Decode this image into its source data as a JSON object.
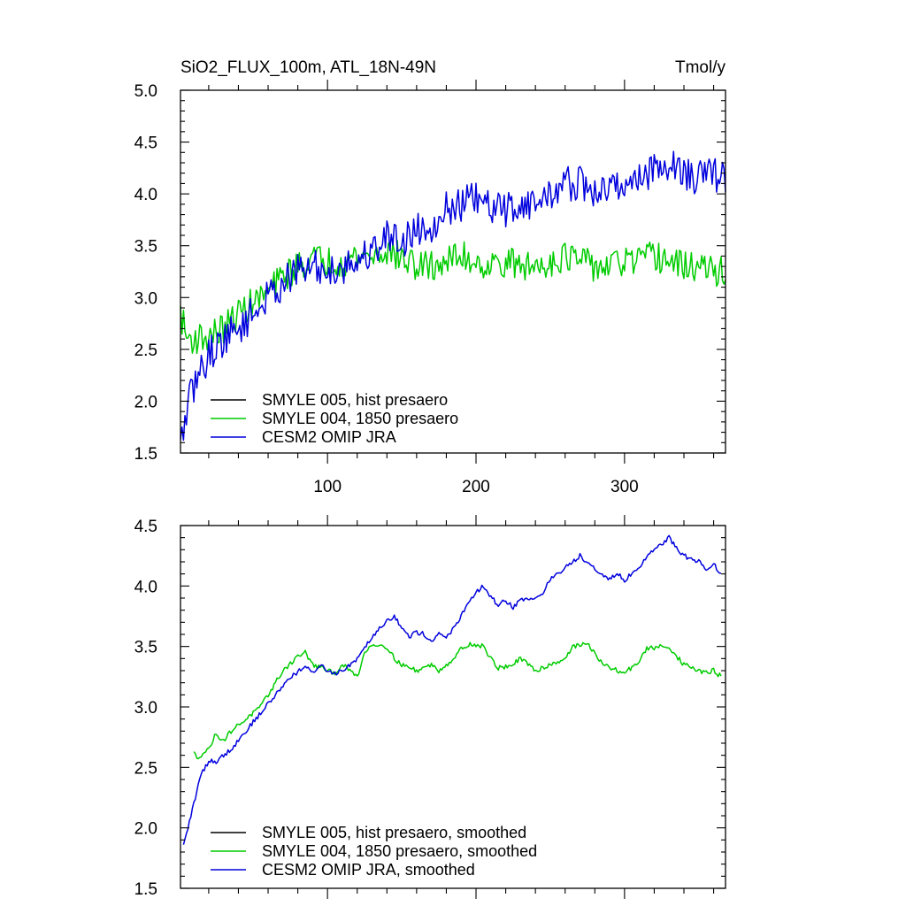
{
  "chart_data": [
    {
      "type": "line",
      "title": "SiO2_FLUX_100m, ATL_18N-49N",
      "units": "Tmol/y",
      "xlabel": "",
      "ylabel": "",
      "xlim": [
        1,
        368
      ],
      "ylim": [
        1.5,
        5.0
      ],
      "xticks": [
        100,
        200,
        300
      ],
      "xtick_labels": [
        "100",
        "200",
        "300"
      ],
      "yticks": [
        1.5,
        2.0,
        2.5,
        3.0,
        3.5,
        4.0,
        4.5,
        5.0
      ],
      "ytick_labels": [
        "1.5",
        "2.0",
        "2.5",
        "3.0",
        "3.5",
        "4.0",
        "4.5",
        "5.0"
      ],
      "legend_position": "bottom-left",
      "series": [
        {
          "name": "SMYLE 005, hist presaero",
          "color": "#000000",
          "values": []
        },
        {
          "name": "SMYLE 004, 1850 presaero",
          "color": "#00cc00",
          "noise": 0.15,
          "anchors": [
            [
              1,
              2.85
            ],
            [
              5,
              2.62
            ],
            [
              10,
              2.6
            ],
            [
              20,
              2.62
            ],
            [
              30,
              2.7
            ],
            [
              40,
              2.85
            ],
            [
              50,
              2.95
            ],
            [
              60,
              3.05
            ],
            [
              70,
              3.2
            ],
            [
              80,
              3.3
            ],
            [
              90,
              3.38
            ],
            [
              100,
              3.35
            ],
            [
              110,
              3.35
            ],
            [
              120,
              3.4
            ],
            [
              130,
              3.4
            ],
            [
              140,
              3.45
            ],
            [
              150,
              3.38
            ],
            [
              160,
              3.3
            ],
            [
              170,
              3.3
            ],
            [
              180,
              3.35
            ],
            [
              190,
              3.4
            ],
            [
              200,
              3.35
            ],
            [
              210,
              3.3
            ],
            [
              220,
              3.35
            ],
            [
              230,
              3.3
            ],
            [
              240,
              3.3
            ],
            [
              250,
              3.35
            ],
            [
              260,
              3.4
            ],
            [
              270,
              3.35
            ],
            [
              280,
              3.3
            ],
            [
              290,
              3.3
            ],
            [
              300,
              3.35
            ],
            [
              310,
              3.35
            ],
            [
              320,
              3.4
            ],
            [
              330,
              3.35
            ],
            [
              340,
              3.3
            ],
            [
              350,
              3.3
            ],
            [
              360,
              3.25
            ],
            [
              368,
              3.25
            ]
          ]
        },
        {
          "name": "CESM2 OMIP JRA",
          "color": "#0000dd",
          "noise": 0.17,
          "anchors": [
            [
              1,
              1.55
            ],
            [
              5,
              1.9
            ],
            [
              10,
              2.15
            ],
            [
              20,
              2.45
            ],
            [
              30,
              2.6
            ],
            [
              40,
              2.7
            ],
            [
              50,
              2.85
            ],
            [
              60,
              3.0
            ],
            [
              70,
              3.15
            ],
            [
              80,
              3.25
            ],
            [
              90,
              3.3
            ],
            [
              100,
              3.25
            ],
            [
              110,
              3.3
            ],
            [
              120,
              3.35
            ],
            [
              130,
              3.45
            ],
            [
              140,
              3.6
            ],
            [
              150,
              3.55
            ],
            [
              160,
              3.65
            ],
            [
              170,
              3.7
            ],
            [
              180,
              3.85
            ],
            [
              190,
              3.9
            ],
            [
              200,
              3.95
            ],
            [
              210,
              3.85
            ],
            [
              220,
              3.85
            ],
            [
              230,
              3.9
            ],
            [
              240,
              3.9
            ],
            [
              250,
              4.0
            ],
            [
              260,
              4.1
            ],
            [
              270,
              4.1
            ],
            [
              280,
              4.0
            ],
            [
              290,
              4.05
            ],
            [
              300,
              4.1
            ],
            [
              310,
              4.15
            ],
            [
              320,
              4.25
            ],
            [
              330,
              4.3
            ],
            [
              340,
              4.2
            ],
            [
              350,
              4.15
            ],
            [
              360,
              4.2
            ],
            [
              368,
              4.15
            ]
          ]
        }
      ]
    },
    {
      "type": "line",
      "title": "",
      "xlabel": "",
      "ylabel": "",
      "xlim": [
        1,
        368
      ],
      "ylim": [
        1.5,
        4.5
      ],
      "xticks": [
        100,
        200,
        300
      ],
      "xtick_labels": [],
      "yticks": [
        1.5,
        2.0,
        2.5,
        3.0,
        3.5,
        4.0,
        4.5
      ],
      "ytick_labels": [
        "1.5",
        "2.0",
        "2.5",
        "3.0",
        "3.5",
        "4.0",
        "4.5"
      ],
      "legend_position": "bottom-left",
      "series": [
        {
          "name": "SMYLE 005, hist presaero, smoothed",
          "color": "#000000",
          "values": []
        },
        {
          "name": "SMYLE 004, 1850 presaero, smoothed",
          "color": "#00cc00",
          "noise": 0.02,
          "anchors": [
            [
              10,
              2.62
            ],
            [
              12,
              2.58
            ],
            [
              20,
              2.65
            ],
            [
              25,
              2.78
            ],
            [
              30,
              2.72
            ],
            [
              35,
              2.8
            ],
            [
              40,
              2.85
            ],
            [
              50,
              2.95
            ],
            [
              55,
              3.0
            ],
            [
              60,
              3.1
            ],
            [
              65,
              3.2
            ],
            [
              70,
              3.3
            ],
            [
              80,
              3.42
            ],
            [
              85,
              3.45
            ],
            [
              90,
              3.35
            ],
            [
              100,
              3.3
            ],
            [
              105,
              3.28
            ],
            [
              110,
              3.35
            ],
            [
              115,
              3.3
            ],
            [
              120,
              3.25
            ],
            [
              125,
              3.45
            ],
            [
              130,
              3.52
            ],
            [
              140,
              3.5
            ],
            [
              145,
              3.4
            ],
            [
              150,
              3.35
            ],
            [
              160,
              3.3
            ],
            [
              170,
              3.35
            ],
            [
              175,
              3.3
            ],
            [
              185,
              3.4
            ],
            [
              190,
              3.48
            ],
            [
              195,
              3.52
            ],
            [
              205,
              3.5
            ],
            [
              210,
              3.4
            ],
            [
              215,
              3.32
            ],
            [
              225,
              3.35
            ],
            [
              230,
              3.4
            ],
            [
              240,
              3.3
            ],
            [
              250,
              3.35
            ],
            [
              260,
              3.4
            ],
            [
              265,
              3.5
            ],
            [
              275,
              3.52
            ],
            [
              280,
              3.45
            ],
            [
              285,
              3.35
            ],
            [
              295,
              3.3
            ],
            [
              300,
              3.28
            ],
            [
              310,
              3.38
            ],
            [
              315,
              3.48
            ],
            [
              325,
              3.5
            ],
            [
              330,
              3.5
            ],
            [
              335,
              3.42
            ],
            [
              340,
              3.35
            ],
            [
              350,
              3.3
            ],
            [
              355,
              3.28
            ],
            [
              360,
              3.3
            ],
            [
              365,
              3.25
            ]
          ]
        },
        {
          "name": "CESM2 OMIP JRA, smoothed",
          "color": "#0000dd",
          "noise": 0.02,
          "anchors": [
            [
              3,
              1.85
            ],
            [
              8,
              2.1
            ],
            [
              12,
              2.3
            ],
            [
              15,
              2.45
            ],
            [
              20,
              2.55
            ],
            [
              25,
              2.55
            ],
            [
              35,
              2.65
            ],
            [
              45,
              2.8
            ],
            [
              55,
              2.95
            ],
            [
              65,
              3.1
            ],
            [
              75,
              3.25
            ],
            [
              85,
              3.33
            ],
            [
              90,
              3.28
            ],
            [
              95,
              3.35
            ],
            [
              100,
              3.3
            ],
            [
              105,
              3.28
            ],
            [
              110,
              3.3
            ],
            [
              115,
              3.35
            ],
            [
              120,
              3.4
            ],
            [
              125,
              3.5
            ],
            [
              130,
              3.58
            ],
            [
              135,
              3.65
            ],
            [
              140,
              3.72
            ],
            [
              145,
              3.75
            ],
            [
              150,
              3.65
            ],
            [
              155,
              3.58
            ],
            [
              160,
              3.62
            ],
            [
              165,
              3.6
            ],
            [
              170,
              3.55
            ],
            [
              175,
              3.6
            ],
            [
              180,
              3.58
            ],
            [
              185,
              3.65
            ],
            [
              190,
              3.75
            ],
            [
              195,
              3.85
            ],
            [
              200,
              3.95
            ],
            [
              205,
              4.0
            ],
            [
              210,
              3.9
            ],
            [
              215,
              3.85
            ],
            [
              220,
              3.88
            ],
            [
              225,
              3.82
            ],
            [
              230,
              3.9
            ],
            [
              235,
              3.88
            ],
            [
              240,
              3.9
            ],
            [
              245,
              3.95
            ],
            [
              250,
              4.05
            ],
            [
              255,
              4.1
            ],
            [
              260,
              4.15
            ],
            [
              265,
              4.2
            ],
            [
              270,
              4.25
            ],
            [
              275,
              4.2
            ],
            [
              280,
              4.15
            ],
            [
              285,
              4.1
            ],
            [
              290,
              4.05
            ],
            [
              295,
              4.1
            ],
            [
              300,
              4.05
            ],
            [
              305,
              4.1
            ],
            [
              310,
              4.15
            ],
            [
              315,
              4.25
            ],
            [
              320,
              4.3
            ],
            [
              325,
              4.35
            ],
            [
              330,
              4.4
            ],
            [
              335,
              4.32
            ],
            [
              340,
              4.25
            ],
            [
              345,
              4.22
            ],
            [
              350,
              4.2
            ],
            [
              355,
              4.15
            ],
            [
              360,
              4.18
            ],
            [
              365,
              4.1
            ]
          ]
        }
      ]
    }
  ]
}
